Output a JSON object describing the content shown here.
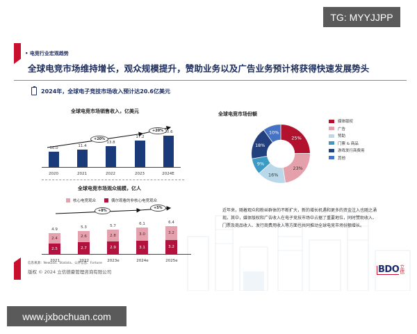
{
  "watermarks": {
    "top": "TG: MYYJJPP",
    "bottom": "www.jxbochuan.com"
  },
  "header": {
    "section_tag": "• 电竞行业宏观趋势",
    "title": "全球电竞市场维持增长，观众规模提升，赞助业务以及广告业务预计将获得快速发展势头",
    "subhead": "2024年，全球电子竞技市场收入预计达20.6亿美元"
  },
  "colors": {
    "navy": "#1b3a7a",
    "brand_red": "#c8102e",
    "core_viewers": "#e3a2ad",
    "casual_viewers": "#b3123e"
  },
  "chart_data": [
    {
      "type": "bar",
      "title": "全球电竞市场销售收入，亿美元",
      "categories": [
        "2020",
        "2021",
        "2022",
        "2023",
        "2024E"
      ],
      "values": [
        10.0,
        11.4,
        13.8,
        17.2,
        20.6
      ],
      "value_labels": [
        "10.0",
        "11.4",
        "13.8",
        "17.2",
        "20.6"
      ],
      "annotations": [
        "+20%",
        "+20%"
      ],
      "xlabel": "",
      "ylabel": "亿美元",
      "ylim": [
        0,
        22
      ],
      "grid": false
    },
    {
      "type": "bar",
      "stacked": true,
      "title": "全球电竞市场观众规模，亿人",
      "categories": [
        "2021",
        "2022",
        "2023e",
        "2024e",
        "2025e"
      ],
      "series": [
        {
          "name": "偶尔观看的非核心电竞观众",
          "values": [
            2.5,
            2.7,
            2.9,
            3.1,
            3.2
          ],
          "labels": [
            "2.5",
            "2.7",
            "2.9",
            "3.1",
            "3.2"
          ]
        },
        {
          "name": "核心电竞观众",
          "values": [
            2.4,
            2.6,
            2.8,
            3.0,
            3.2
          ],
          "labels": [
            "2.4",
            "2.6",
            "2.8",
            "3.0",
            "3.2"
          ]
        }
      ],
      "totals": [
        "4.9",
        "5.3",
        "5.7",
        "6.1",
        "6.4"
      ],
      "annotations": [
        "+8%",
        "+5%"
      ],
      "legend": [
        "核心电竞观众",
        "偶尔观看的非核心电竞观众"
      ],
      "legend_position": "top",
      "ylim": [
        0,
        7
      ]
    },
    {
      "type": "pie",
      "donut": true,
      "title": "全球电竞市场份额",
      "slices": [
        {
          "label": "媒体版权",
          "value": 25,
          "text": "25%",
          "color": "#b3122e"
        },
        {
          "label": "广告",
          "value": 23,
          "text": "23%",
          "color": "#e4a1ac"
        },
        {
          "label": "赞助",
          "value": 16,
          "text": "16%",
          "color": "#b9d9ea"
        },
        {
          "label": "门票 & 商品",
          "value": 9,
          "text": "9%",
          "color": "#3d9ac4"
        },
        {
          "label": "游戏发行商费用",
          "value": 18,
          "text": "18%",
          "color": "#22407e"
        },
        {
          "label": "其他",
          "value": 10,
          "text": "10%",
          "color": "#4472c4"
        }
      ],
      "legend_position": "right"
    }
  ],
  "paragraph": "近年来，随着观众和粉丝群体的不断扩大，新的增长机遇和更多的资金注入也随之涌现。其中，媒体版权和广告收入在电子竞技市场中占据了重要地位，同时赞助收入、门票及商品收入、发行商费用收入等方面也共同推动全球电竞市场份额增长。",
  "footer": {
    "source": "信息来源：NewZoo、Statista、公开信息、Fortune",
    "copyright": "版权 © 2024 立信德豪管理咨询有限公司",
    "logo_text": "BDO",
    "logo_cn": "立信"
  }
}
